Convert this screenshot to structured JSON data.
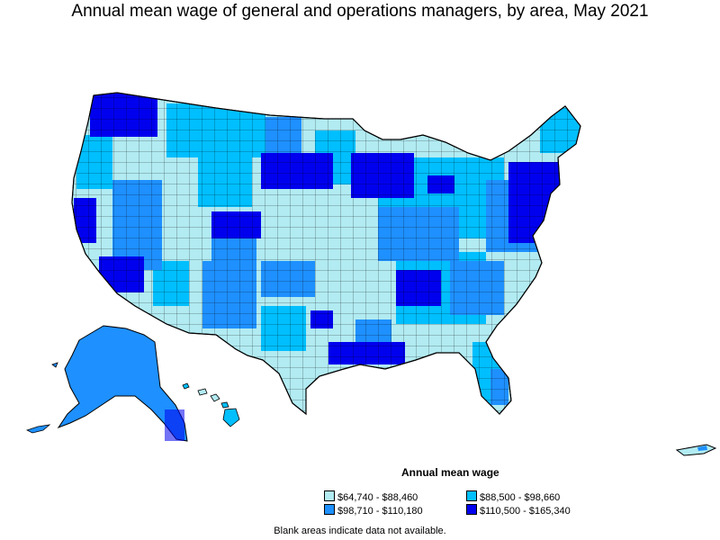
{
  "title": "Annual mean wage of general and operations managers, by area, May 2021",
  "legend": {
    "title": "Annual mean wage",
    "items": [
      {
        "label": "$64,740 - $88,460",
        "color": "#b2ebf2"
      },
      {
        "label": "$88,500 - $98,660",
        "color": "#00bfff"
      },
      {
        "label": "$98,710 - $110,180",
        "color": "#1e90ff"
      },
      {
        "label": "$110,500 - $165,340",
        "color": "#0000ee"
      }
    ]
  },
  "footnote": "Blank areas indicate data not available.",
  "colors": {
    "tier1": "#b2ebf2",
    "tier2": "#00bfff",
    "tier3": "#1e90ff",
    "tier4": "#0000ee",
    "border": "#000000"
  }
}
